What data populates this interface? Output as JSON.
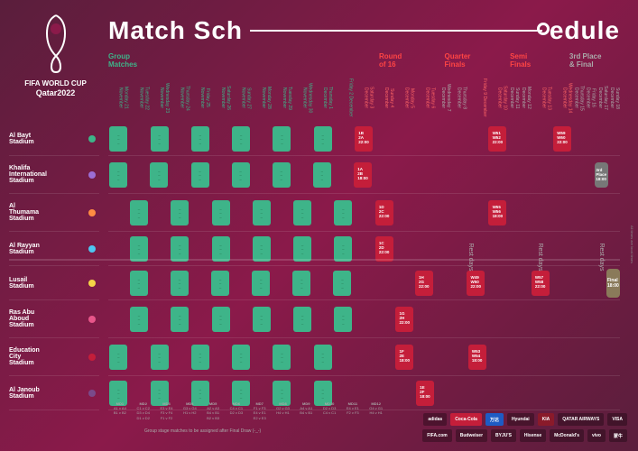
{
  "title_left": "Match Sch",
  "title_right": "edule",
  "logo_line1": "FIFA WORLD CUP",
  "logo_line2": "Qatar2022",
  "phases": {
    "group": "Group\nMatches",
    "r16": "Round\nof 16",
    "qf": "Quarter\nFinals",
    "sf": "Semi\nFinals",
    "third": "3rd Place\n& Final"
  },
  "dates": [
    {
      "day": "Monday",
      "date": "21 November",
      "cls": "green"
    },
    {
      "day": "Tuesday",
      "date": "22 November",
      "cls": "green"
    },
    {
      "day": "Wednesday",
      "date": "23 November",
      "cls": "green"
    },
    {
      "day": "Thursday",
      "date": "24 November",
      "cls": "green"
    },
    {
      "day": "Friday",
      "date": "25 November",
      "cls": "green"
    },
    {
      "day": "Saturday",
      "date": "26 November",
      "cls": "green"
    },
    {
      "day": "Sunday",
      "date": "27 November",
      "cls": "green"
    },
    {
      "day": "Monday",
      "date": "28 November",
      "cls": "green"
    },
    {
      "day": "Tuesday",
      "date": "29 November",
      "cls": "green"
    },
    {
      "day": "Wednesday",
      "date": "30 November",
      "cls": "green"
    },
    {
      "day": "Thursday",
      "date": "1 December",
      "cls": "green"
    },
    {
      "day": "Friday",
      "date": "2 December",
      "cls": "green"
    },
    {
      "day": "Saturday",
      "date": "3 December",
      "cls": "red"
    },
    {
      "day": "Sunday",
      "date": "4 December",
      "cls": "red"
    },
    {
      "day": "Monday",
      "date": "5 December",
      "cls": "red"
    },
    {
      "day": "Tuesday",
      "date": "6 December",
      "cls": "red"
    },
    {
      "day": "Wednesday",
      "date": "7 December",
      "cls": "gray"
    },
    {
      "day": "Thursday",
      "date": "8 December",
      "cls": "gray"
    },
    {
      "day": "Friday",
      "date": "9 December",
      "cls": "red"
    },
    {
      "day": "Saturday",
      "date": "10 December",
      "cls": "red"
    },
    {
      "day": "Sunday",
      "date": "11 December",
      "cls": "gray"
    },
    {
      "day": "Monday",
      "date": "12 December",
      "cls": "gray"
    },
    {
      "day": "Tuesday",
      "date": "13 December",
      "cls": "red"
    },
    {
      "day": "Wednesday",
      "date": "14 December",
      "cls": "red"
    },
    {
      "day": "Thursday",
      "date": "15 December",
      "cls": "gray"
    },
    {
      "day": "Friday",
      "date": "16 December",
      "cls": "gray"
    },
    {
      "day": "Saturday",
      "date": "17 December",
      "cls": "gray"
    },
    {
      "day": "Sunday",
      "date": "18 December",
      "cls": "gray"
    }
  ],
  "stadiums": [
    {
      "name": "Al Bayt\nStadium",
      "color": "#3eb489",
      "tall": false
    },
    {
      "name": "Khalifa\nInternational\nStadium",
      "color": "#9c6dd4",
      "tall": true
    },
    {
      "name": "Al\nThumama\nStadium",
      "color": "#ff8c42",
      "tall": true
    },
    {
      "name": "Al Rayyan\nStadium",
      "color": "#4ec5f1",
      "tall": false
    },
    {
      "name": "Lusail\nStadium",
      "color": "#f5d547",
      "tall": false
    },
    {
      "name": "Ras Abu\nAboud\nStadium",
      "color": "#e8568a",
      "tall": true
    },
    {
      "name": "Education\nCity\nStadium",
      "color": "#c41e3a",
      "tall": true
    },
    {
      "name": "Al Janoub\nStadium",
      "color": "#7a4a8a",
      "tall": false
    }
  ],
  "group_pattern": [
    [
      1,
      0,
      1,
      0,
      1,
      0,
      1,
      0,
      1,
      0,
      1,
      0
    ],
    [
      1,
      0,
      1,
      0,
      1,
      0,
      1,
      0,
      1,
      0,
      1,
      0
    ],
    [
      0,
      1,
      0,
      1,
      0,
      1,
      0,
      1,
      0,
      1,
      0,
      1
    ],
    [
      0,
      1,
      0,
      1,
      0,
      1,
      0,
      1,
      0,
      1,
      0,
      1
    ],
    [
      0,
      1,
      0,
      1,
      0,
      1,
      0,
      1,
      0,
      1,
      0,
      1
    ],
    [
      0,
      1,
      0,
      1,
      0,
      1,
      0,
      1,
      0,
      1,
      0,
      1
    ],
    [
      1,
      0,
      1,
      0,
      1,
      0,
      1,
      0,
      1,
      0,
      1,
      0
    ],
    [
      1,
      0,
      1,
      0,
      1,
      0,
      1,
      0,
      1,
      0,
      1,
      0
    ]
  ],
  "knockout": {
    "r16": [
      {
        "row": 0,
        "col": 12,
        "txt": "1B\n2A\n22:00"
      },
      {
        "row": 1,
        "col": 12,
        "txt": "1A\n2B\n18:00"
      },
      {
        "row": 2,
        "col": 13,
        "txt": "1D\n2C\n22:00"
      },
      {
        "row": 3,
        "col": 13,
        "txt": "1C\n2D\n22:00"
      },
      {
        "row": 4,
        "col": 15,
        "txt": "1H\n2G\n22:00"
      },
      {
        "row": 5,
        "col": 14,
        "txt": "1G\n2H\n22:00"
      },
      {
        "row": 6,
        "col": 14,
        "txt": "1F\n2E\n18:00"
      },
      {
        "row": 7,
        "col": 15,
        "txt": "1E\n2F\n18:00"
      }
    ],
    "qf": [
      {
        "row": 0,
        "col": 19,
        "txt": "W51\nW52\n22:00"
      },
      {
        "row": 2,
        "col": 19,
        "txt": "W55\nW56\n18:00"
      },
      {
        "row": 4,
        "col": 18,
        "txt": "W49\nW50\n22:00"
      },
      {
        "row": 6,
        "col": 18,
        "txt": "W53\nW54\n18:00"
      }
    ],
    "sf": [
      {
        "row": 0,
        "col": 23,
        "txt": "W59\nW60\n22:00"
      },
      {
        "row": 4,
        "col": 22,
        "txt": "W57\nW58\n22:00"
      }
    ],
    "third": {
      "row": 1,
      "col": 26,
      "txt": "3rd\nPlace\n18:00"
    },
    "final": {
      "row": 4,
      "col": 27,
      "txt": "Final\n18:00"
    }
  },
  "rest_label": "Rest days",
  "md_labels": [
    "MD1",
    "MD2",
    "MD3",
    "MD4",
    "MD5",
    "MD6",
    "MD7",
    "MD8",
    "MD9",
    "MD10",
    "MD11",
    "MD12"
  ],
  "md_matches": [
    "A1 v A4\nB1 v B2",
    "C1 v C2\nD3 v D4\nD1 v D2",
    "E3 v E4\nF3 v F4\nF1 v F2",
    "G3 v G4\nH1 v H2",
    "A2 v A3\nB4 v B1\nB2 v B3",
    "C4 v C1\nD2 v D3",
    "F1 v F3\nE4 v E1\nE2 v E3",
    "G2 v G3\nH4 v H1",
    "A4 v A1\nB4 v B1",
    "D2 v D3\nC4 v C1",
    "E4 v E1\nF2 v F3",
    "G4 v G1\nH4 v H1"
  ],
  "footer_note": "Group stage matches to be assigned after Final Draw (-_-)",
  "sponsors_top": [
    "adidas",
    "Coca-Cola",
    "万达",
    "Hyundai",
    "KIA",
    "QATAR AIRWAYS",
    "VISA"
  ],
  "sponsors_bottom": [
    "FIFA.com",
    "Budweiser",
    "BYJU'S",
    "Hisense",
    "McDonald's",
    "vivo",
    "蒙牛"
  ],
  "side_note": "All times are local times",
  "copyright": "©15.07.2020 © FIFA"
}
